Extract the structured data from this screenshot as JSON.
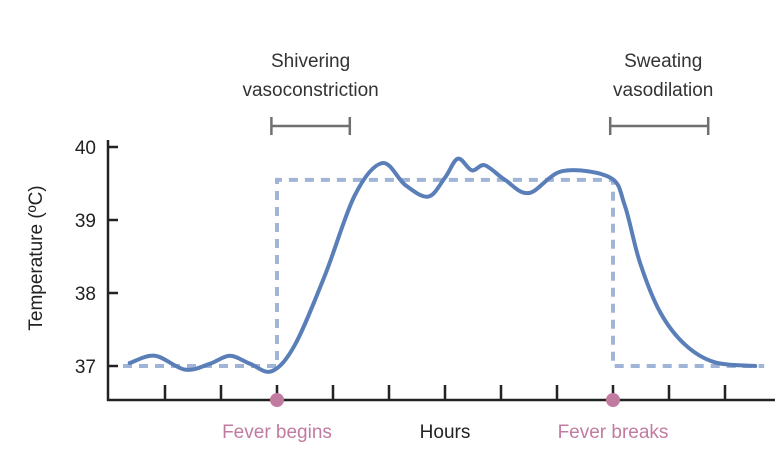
{
  "chart_data": {
    "type": "line",
    "title": "",
    "xlabel": "Hours",
    "ylabel": "Temperature (ºC)",
    "ylim": [
      36.55,
      40.1
    ],
    "xlim": [
      0,
      11.9
    ],
    "yticks": [
      37,
      38,
      39,
      40
    ],
    "xticks": [
      1,
      2,
      3,
      4,
      5,
      6,
      7,
      8,
      9,
      10,
      11
    ],
    "grid": false,
    "colors": {
      "temperature": "#5a7fb8",
      "set_point": "#9fb4d6",
      "event": "#c27ba0",
      "bracket": "#707070",
      "axis": "#222222"
    },
    "series": [
      {
        "role": "temperature",
        "style": "solid",
        "x": [
          0.37,
          0.82,
          1.36,
          1.8,
          2.16,
          2.52,
          2.91,
          3.32,
          3.86,
          4.39,
          4.88,
          5.29,
          5.7,
          6.0,
          6.23,
          6.48,
          6.71,
          7.07,
          7.5,
          8.1,
          8.95,
          9.21,
          9.48,
          9.84,
          10.29,
          10.82,
          11.54
        ],
        "y": [
          37.04,
          37.14,
          36.95,
          37.03,
          37.14,
          37.03,
          36.93,
          37.29,
          38.25,
          39.34,
          39.78,
          39.48,
          39.32,
          39.58,
          39.84,
          39.68,
          39.75,
          39.55,
          39.37,
          39.67,
          39.58,
          39.2,
          38.42,
          37.74,
          37.29,
          37.05,
          37.0
        ]
      },
      {
        "role": "set-point",
        "style": "dashed",
        "x": [
          0.25,
          3,
          3,
          9,
          9,
          11.7
        ],
        "y": [
          37,
          37,
          39.55,
          39.55,
          37,
          37
        ]
      }
    ],
    "events": [
      {
        "label": "Fever begins",
        "x": 3
      },
      {
        "label": "Fever breaks",
        "x": 9
      }
    ],
    "annotations": [
      {
        "lines": [
          "Shivering",
          "vasoconstriction"
        ],
        "x_range": [
          2.9,
          4.3
        ]
      },
      {
        "lines": [
          "Sweating",
          "vasodilation"
        ],
        "x_range": [
          8.95,
          10.7
        ]
      }
    ]
  }
}
